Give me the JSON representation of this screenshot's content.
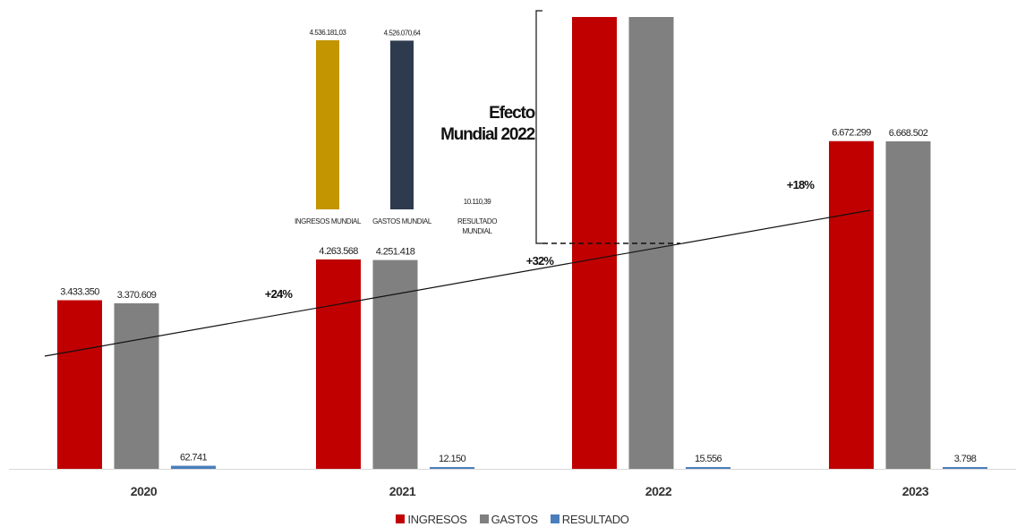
{
  "chart_data": {
    "type": "bar",
    "categories": [
      "2020",
      "2021",
      "2022",
      "2023"
    ],
    "series": [
      {
        "name": "INGRESOS",
        "color": "#c00000",
        "values": [
          3433350,
          4263568,
          9200000,
          6672299
        ],
        "labels": [
          "3.433.350",
          "4.263.568",
          "",
          "6.672.299"
        ]
      },
      {
        "name": "GASTOS",
        "color": "#808080",
        "values": [
          3370609,
          4251418,
          9200000,
          6668502
        ],
        "labels": [
          "3.370.609",
          "4.251.418",
          "",
          "6.668.502"
        ]
      },
      {
        "name": "RESULTADO",
        "color": "#4a7ebb",
        "values": [
          62741,
          12150,
          15556,
          3798
        ],
        "labels": [
          "62.741",
          "12.150",
          "15.556",
          "3.798"
        ]
      }
    ],
    "growth_labels": [
      "+24%",
      "+32%",
      "+18%"
    ],
    "trendline": true,
    "legend": "bottom-center",
    "grid": false,
    "inset": {
      "annotation": [
        "Efecto",
        "Mundial 2022"
      ],
      "categories": [
        "INGRESOS MUNDIAL",
        "GASTOS MUNDIAL",
        "RESULTADO MUNDIAL"
      ],
      "values": [
        4536181.03,
        4526070.64,
        10110.39
      ],
      "labels": [
        "4.536.181,03",
        "4.526.070,64",
        "10.110,39"
      ],
      "colors": [
        "#c39500",
        "#2e3a4e",
        "#4a7ebb"
      ]
    }
  }
}
